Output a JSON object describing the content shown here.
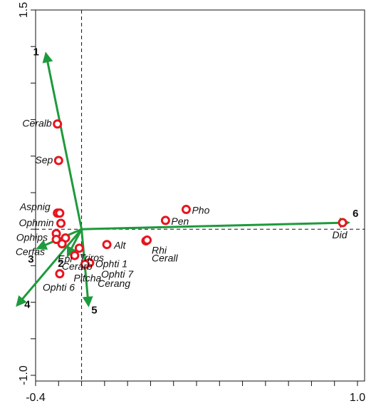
{
  "chart_data": {
    "type": "scatter",
    "title": "",
    "xlabel": "",
    "ylabel": "",
    "xlim": [
      -0.4,
      1.0
    ],
    "ylim": [
      -1.0,
      1.5
    ],
    "grid": false,
    "x_ticks": [
      -0.4,
      -0.3,
      -0.2,
      -0.1,
      0.0,
      0.1,
      0.2,
      0.3,
      0.4,
      0.5,
      0.6,
      0.7,
      0.8,
      0.9,
      1.0
    ],
    "x_tick_labels": [
      "-0.4",
      "1.0"
    ],
    "y_ticks": [
      -1.0,
      -0.75,
      -0.5,
      -0.25,
      0.0,
      0.25,
      0.5,
      0.75,
      1.0,
      1.25,
      1.5
    ],
    "y_tick_labels": [
      "-1.0",
      "1.5"
    ],
    "reference_lines": {
      "x": -0.2,
      "y": 0.0
    },
    "colors": {
      "points": "#e8141e",
      "vectors": "#1e9a3c",
      "axes": "#111111"
    },
    "points": [
      {
        "label": "Ceralb",
        "x": -0.305,
        "y": 0.72
      },
      {
        "label": "Sep",
        "x": -0.3,
        "y": 0.47
      },
      {
        "label": "Aspnig",
        "x": -0.305,
        "y": 0.11
      },
      {
        "label": "",
        "x": -0.295,
        "y": 0.11
      },
      {
        "label": "Ophmin",
        "x": -0.29,
        "y": 0.04
      },
      {
        "label": "Ophips",
        "x": -0.31,
        "y": -0.03
      },
      {
        "label": "Cerfas",
        "x": -0.31,
        "y": -0.07
      },
      {
        "label": "",
        "x": -0.27,
        "y": -0.06
      },
      {
        "label": "Epi",
        "x": -0.285,
        "y": -0.1
      },
      {
        "label": "Triros",
        "x": -0.21,
        "y": -0.13
      },
      {
        "label": "Cerarb",
        "x": -0.23,
        "y": -0.18
      },
      {
        "label": "Ophti 1",
        "x": -0.165,
        "y": -0.23
      },
      {
        "label": "Pitcha",
        "x": -0.185,
        "y": -0.24
      },
      {
        "label": "Ophti 6",
        "x": -0.295,
        "y": -0.305
      },
      {
        "label": "Alt",
        "x": -0.09,
        "y": -0.105
      },
      {
        "label": "Rhi",
        "x": 0.08,
        "y": -0.08
      },
      {
        "label": "",
        "x": 0.085,
        "y": -0.075
      },
      {
        "label": "Pho",
        "x": 0.255,
        "y": 0.135
      },
      {
        "label": "Pen",
        "x": 0.165,
        "y": 0.06
      },
      {
        "label": "Did",
        "x": 0.935,
        "y": 0.045
      }
    ],
    "free_labels": [
      {
        "text": "Cerall",
        "x": 0.105,
        "y": -0.22
      },
      {
        "text": "Ophti 7",
        "x": -0.115,
        "y": -0.33
      },
      {
        "text": "Cerang",
        "x": -0.13,
        "y": -0.395
      }
    ],
    "vectors": [
      {
        "label": "1",
        "x": -0.355,
        "y": 1.2
      },
      {
        "label": "2",
        "x": -0.26,
        "y": -0.18
      },
      {
        "label": "3",
        "x": -0.39,
        "y": -0.13
      },
      {
        "label": "4",
        "x": -0.48,
        "y": -0.52
      },
      {
        "label": "5",
        "x": -0.17,
        "y": -0.52
      },
      {
        "label": "6",
        "x": 0.96,
        "y": 0.045
      }
    ]
  }
}
